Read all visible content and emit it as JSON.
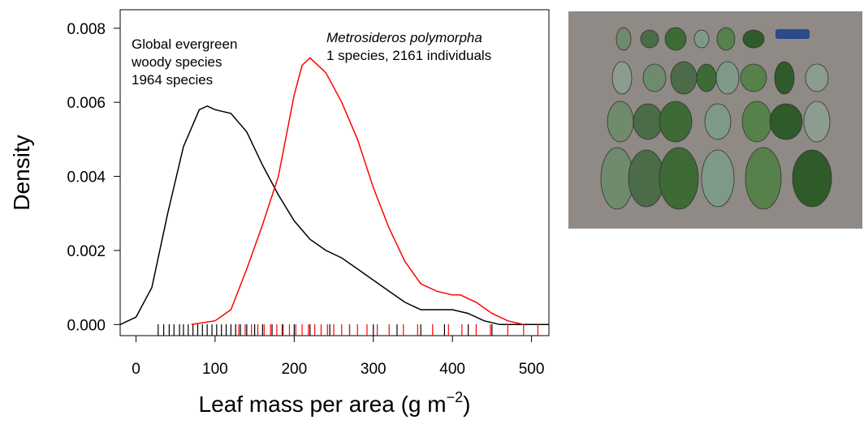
{
  "chart_data": {
    "type": "line",
    "ylabel": "Density",
    "xlabel": [
      "Leaf mass per area (g m",
      "−2",
      ")"
    ],
    "annotations": [
      {
        "lines": [
          "Global evergreen",
          "woody species",
          "1964 species"
        ]
      },
      {
        "lines": [
          "Metrosideros polymorpha",
          "1 species, 2161 individuals"
        ]
      }
    ],
    "xlim": [
      -20,
      522
    ],
    "ylim": [
      -0.0003,
      0.0085
    ],
    "xticks": [
      0,
      100,
      200,
      300,
      400,
      500
    ],
    "yticks": [
      {
        "value": 0,
        "label": "0.000"
      },
      {
        "value": 0.002,
        "label": "0.002"
      },
      {
        "value": 0.004,
        "label": "0.004"
      },
      {
        "value": 0.006,
        "label": "0.006"
      },
      {
        "value": 0.008,
        "label": "0.008"
      }
    ],
    "series": [
      {
        "color": "#000000",
        "x": [
          -20,
          0,
          20,
          40,
          60,
          80,
          90,
          100,
          120,
          140,
          160,
          180,
          200,
          220,
          240,
          260,
          280,
          300,
          320,
          340,
          360,
          380,
          400,
          420,
          440,
          460,
          480,
          522
        ],
        "values": [
          0.0,
          0.0002,
          0.001,
          0.003,
          0.0048,
          0.0058,
          0.0059,
          0.0058,
          0.0057,
          0.0052,
          0.0043,
          0.0035,
          0.0028,
          0.0023,
          0.002,
          0.0018,
          0.0015,
          0.0012,
          0.0009,
          0.0006,
          0.0004,
          0.0004,
          0.0004,
          0.0003,
          0.0001,
          0.0,
          0.0,
          0.0
        ],
        "rug": [
          28,
          35,
          42,
          48,
          55,
          60,
          66,
          72,
          78,
          84,
          90,
          96,
          102,
          108,
          114,
          120,
          126,
          132,
          140,
          150,
          160,
          172,
          185,
          200,
          220,
          245,
          270,
          300,
          330,
          360,
          390,
          420,
          450
        ]
      },
      {
        "color": "#ff0000",
        "x": [
          70,
          100,
          120,
          140,
          160,
          180,
          200,
          210,
          220,
          240,
          260,
          280,
          300,
          320,
          340,
          360,
          380,
          400,
          410,
          430,
          450,
          470,
          490
        ],
        "values": [
          0.0,
          0.0001,
          0.0004,
          0.0015,
          0.0027,
          0.004,
          0.0062,
          0.007,
          0.0072,
          0.0068,
          0.006,
          0.005,
          0.0037,
          0.0026,
          0.0017,
          0.0011,
          0.0009,
          0.0008,
          0.0008,
          0.0006,
          0.0003,
          0.0001,
          0.0
        ],
        "rug": [
          130,
          138,
          146,
          154,
          162,
          170,
          178,
          186,
          194,
          202,
          210,
          218,
          226,
          234,
          242,
          250,
          260,
          270,
          280,
          292,
          305,
          320,
          338,
          356,
          375,
          395,
          412,
          430,
          448,
          470,
          490,
          508
        ]
      }
    ]
  }
}
